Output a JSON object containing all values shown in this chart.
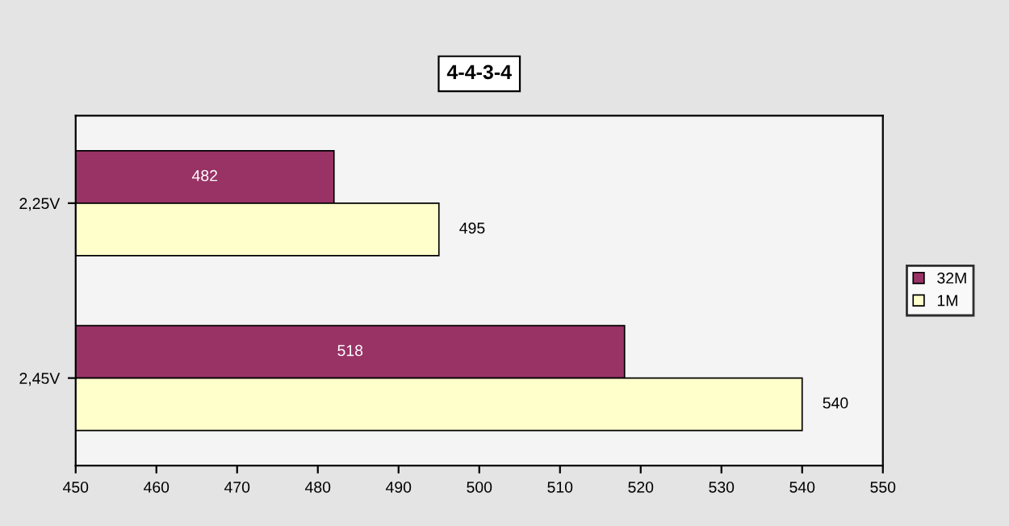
{
  "chart_data": {
    "type": "bar",
    "orientation": "horizontal",
    "title": "4-4-3-4",
    "categories": [
      "2,25V",
      "2,45V"
    ],
    "series": [
      {
        "name": "32M",
        "color": "#993366",
        "values": [
          482,
          518
        ]
      },
      {
        "name": "1M",
        "color": "#ffffcc",
        "values": [
          495,
          540
        ]
      }
    ],
    "xlim": [
      450,
      550
    ],
    "xticks": [
      450,
      460,
      470,
      480,
      490,
      500,
      510,
      520,
      530,
      540,
      550
    ],
    "data_labels": true,
    "legend": "right",
    "grid": false
  }
}
